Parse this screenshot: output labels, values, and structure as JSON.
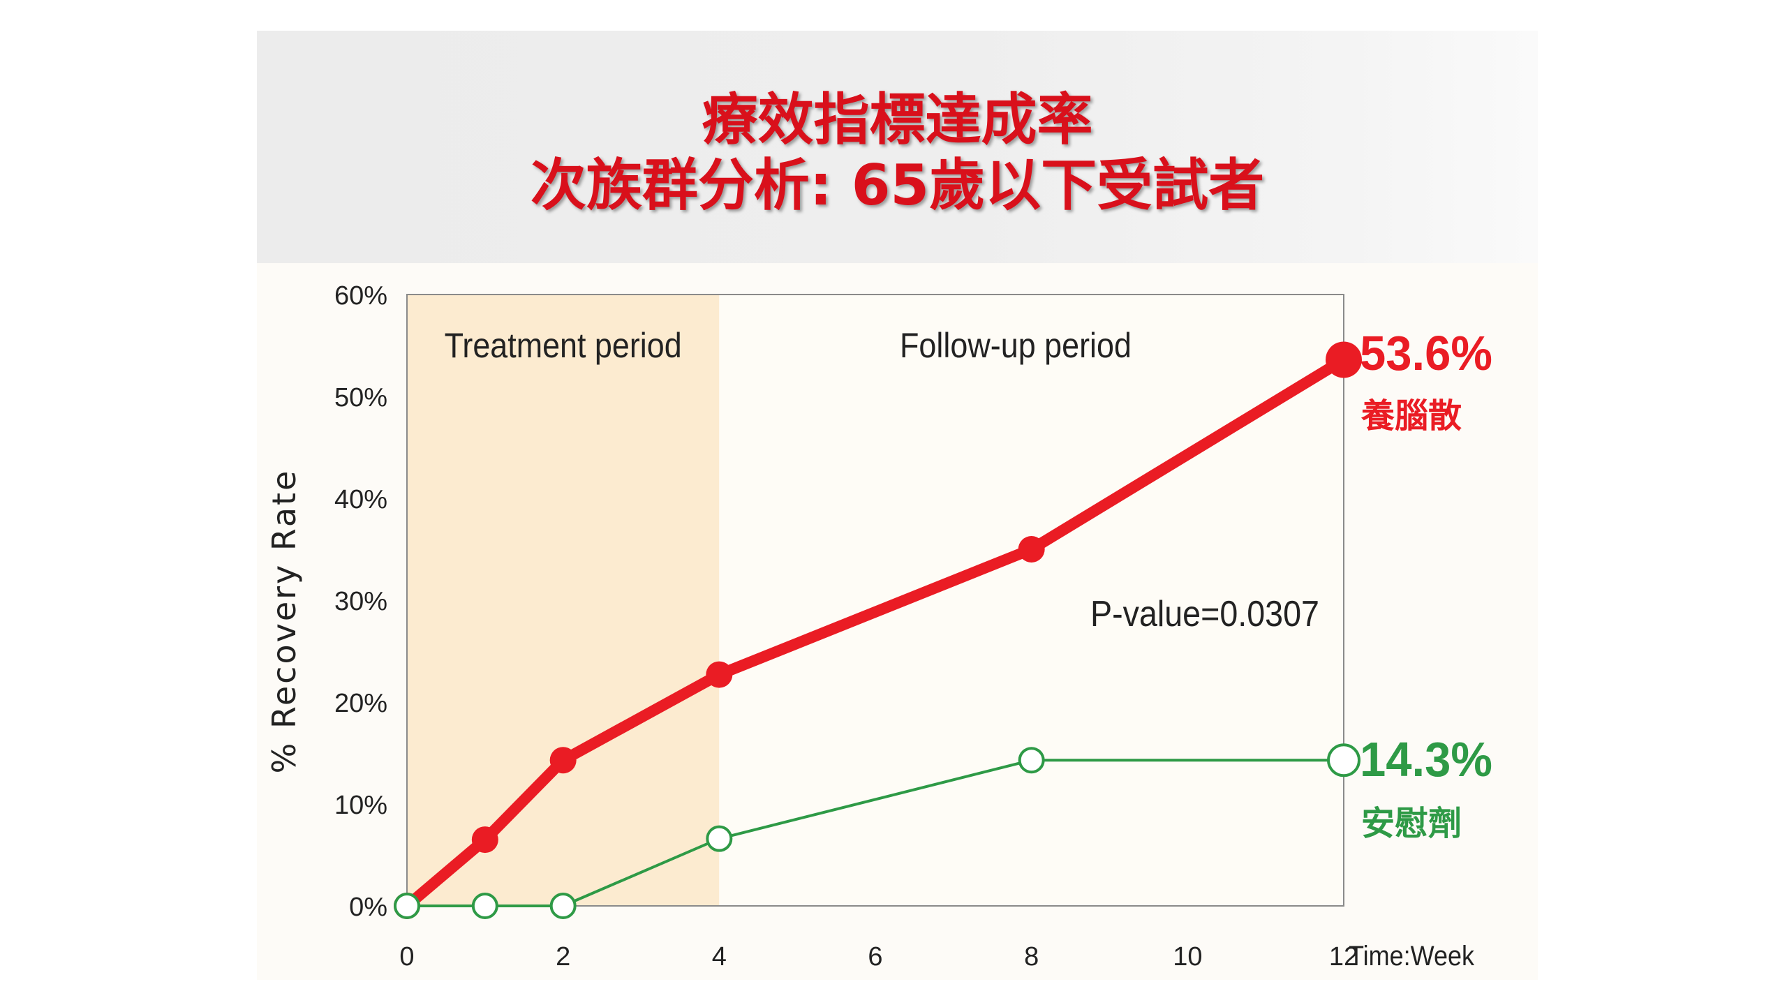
{
  "title_lines": [
    "療效指標達成率",
    "次族群分析: 65歲以下受試者"
  ],
  "chart_data": {
    "type": "line",
    "xlabel": "Time:Week",
    "ylabel": "% Recovery Rate",
    "x_ticks": [
      0,
      2,
      4,
      6,
      8,
      10,
      12
    ],
    "y_ticks": [
      "0%",
      "10%",
      "20%",
      "30%",
      "40%",
      "50%",
      "60%"
    ],
    "xlim": [
      0,
      12
    ],
    "ylim": [
      0,
      60
    ],
    "grid": false,
    "regions": [
      {
        "label": "Treatment period",
        "x_start": 0,
        "x_end": 4,
        "color": "#fcebd0"
      },
      {
        "label": "Follow-up period",
        "x_start": 4,
        "x_end": 12,
        "color": "#fefcf6"
      }
    ],
    "annotation": "P-value=0.0307",
    "series": [
      {
        "name": "養腦散",
        "final_label": "53.6%",
        "color": "#ea1c24",
        "marker": "filled",
        "x": [
          0,
          1,
          2,
          4,
          8,
          12
        ],
        "y": [
          0,
          6.5,
          14.3,
          22.7,
          35.0,
          53.6
        ]
      },
      {
        "name": "安慰劑",
        "final_label": "14.3%",
        "color": "#2e9a46",
        "marker": "open",
        "x": [
          0,
          1,
          2,
          4,
          8,
          12
        ],
        "y": [
          0,
          0,
          0,
          6.6,
          14.3,
          14.3
        ]
      }
    ]
  }
}
